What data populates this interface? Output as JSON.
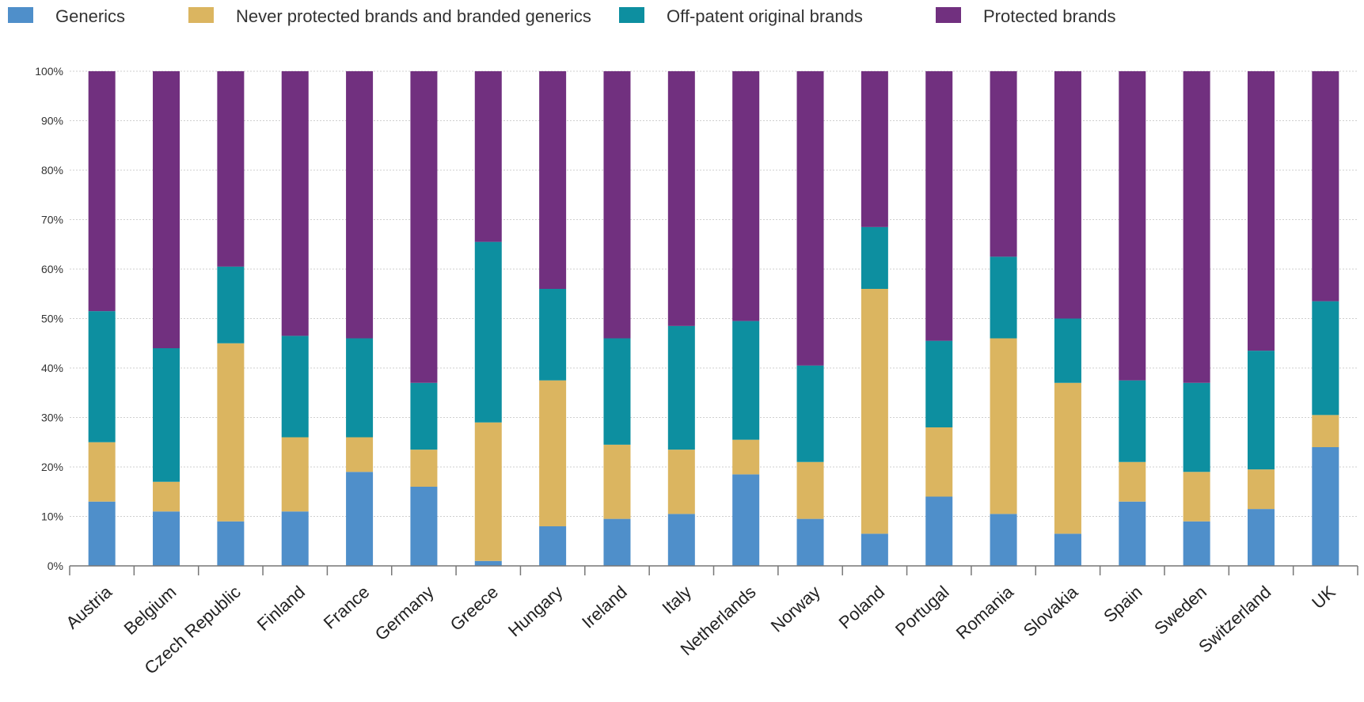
{
  "chart_data": {
    "type": "bar",
    "stacked": true,
    "categories": [
      "Austria",
      "Belgium",
      "Czech Republic",
      "Finland",
      "France",
      "Germany",
      "Greece",
      "Hungary",
      "Ireland",
      "Italy",
      "Netherlands",
      "Norway",
      "Poland",
      "Portugal",
      "Romania",
      "Slovakia",
      "Spain",
      "Sweden",
      "Switzerland",
      "UK"
    ],
    "series": [
      {
        "name": "Generics",
        "color": "#4f8fca",
        "values": [
          13,
          11,
          9,
          11,
          19,
          16,
          1,
          8,
          9.5,
          10.5,
          18.5,
          9.5,
          6.5,
          14,
          10.5,
          6.5,
          13,
          9,
          11.5,
          24
        ]
      },
      {
        "name": "Never protected brands and branded generics",
        "color": "#dbb560",
        "values": [
          12,
          6,
          36,
          15,
          7,
          7.5,
          28,
          29.5,
          15,
          13,
          7,
          11.5,
          49.5,
          14,
          35.5,
          30.5,
          8,
          10,
          8,
          6.5
        ]
      },
      {
        "name": "Off-patent original brands",
        "color": "#0d8fa0",
        "values": [
          26.5,
          27,
          15.5,
          20.5,
          20,
          13.5,
          36.5,
          18.5,
          21.5,
          25,
          24,
          19.5,
          12.5,
          17.5,
          16.5,
          13,
          16.5,
          18,
          24,
          23
        ]
      },
      {
        "name": "Protected brands",
        "color": "#71307f",
        "values": [
          48.5,
          56,
          39.5,
          53.5,
          54,
          63,
          34.5,
          44,
          54,
          51.5,
          50.5,
          59.5,
          31.5,
          54.5,
          37.5,
          50,
          62.5,
          63,
          56.5,
          46.5
        ]
      }
    ],
    "yticks": [
      "0%",
      "10%",
      "20%",
      "30%",
      "40%",
      "50%",
      "60%",
      "70%",
      "80%",
      "90%",
      "100%"
    ],
    "ylim": [
      0,
      100
    ],
    "grid": true,
    "legend": "top"
  }
}
